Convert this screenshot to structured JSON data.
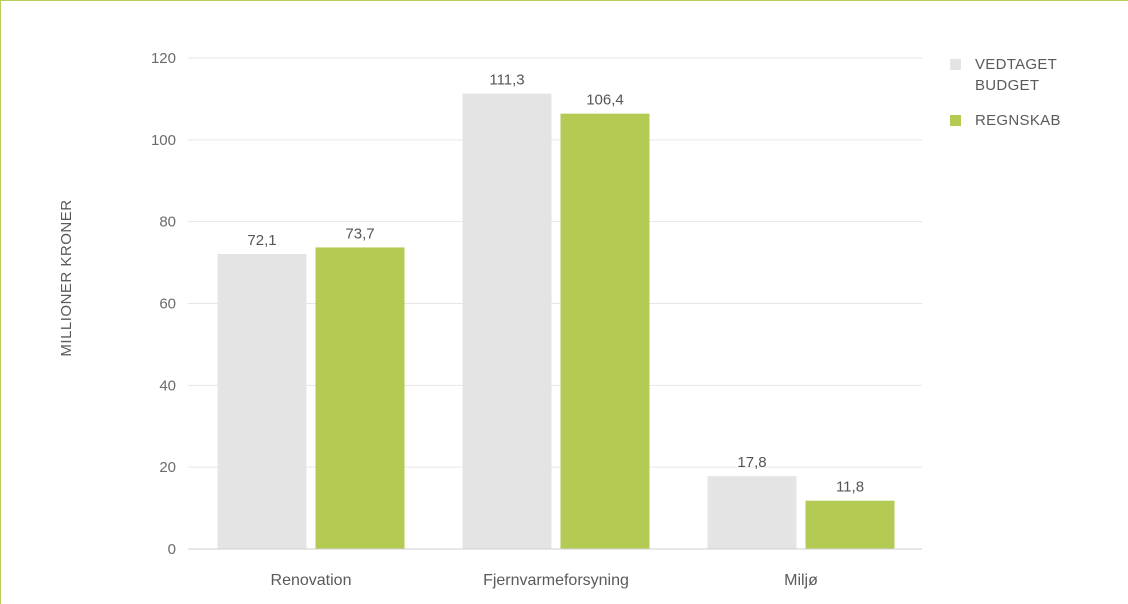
{
  "chart_data": {
    "type": "bar",
    "categories": [
      "Renovation",
      "Fjernvarmeforsyning",
      "Miljø"
    ],
    "series": [
      {
        "name": "VEDTAGET BUDGET",
        "values": [
          72.1,
          111.3,
          17.8
        ],
        "labels": [
          "72,1",
          "111,3",
          "17,8"
        ],
        "color": "#e4e4e4"
      },
      {
        "name": "REGNSKAB",
        "values": [
          73.7,
          106.4,
          11.8
        ],
        "labels": [
          "73,7",
          "106,4",
          "11,8"
        ],
        "color": "#b3cb52"
      }
    ],
    "legend_lines": [
      [
        "VEDTAGET",
        "BUDGET"
      ],
      [
        "REGNSKAB"
      ]
    ],
    "title": "",
    "xlabel": "",
    "ylabel": "MILLIONER KRONER",
    "ylim": [
      0,
      120
    ],
    "yticks": [
      0,
      20,
      40,
      60,
      80,
      100,
      120
    ],
    "ytick_labels": [
      "0",
      "20",
      "40",
      "60",
      "80",
      "100",
      "120"
    ],
    "grid": true,
    "legend_position": "top-right",
    "frame_color": "#b5cd5a",
    "grid_color": "#e6e6e6",
    "axis_color": "#cfcfcf"
  }
}
